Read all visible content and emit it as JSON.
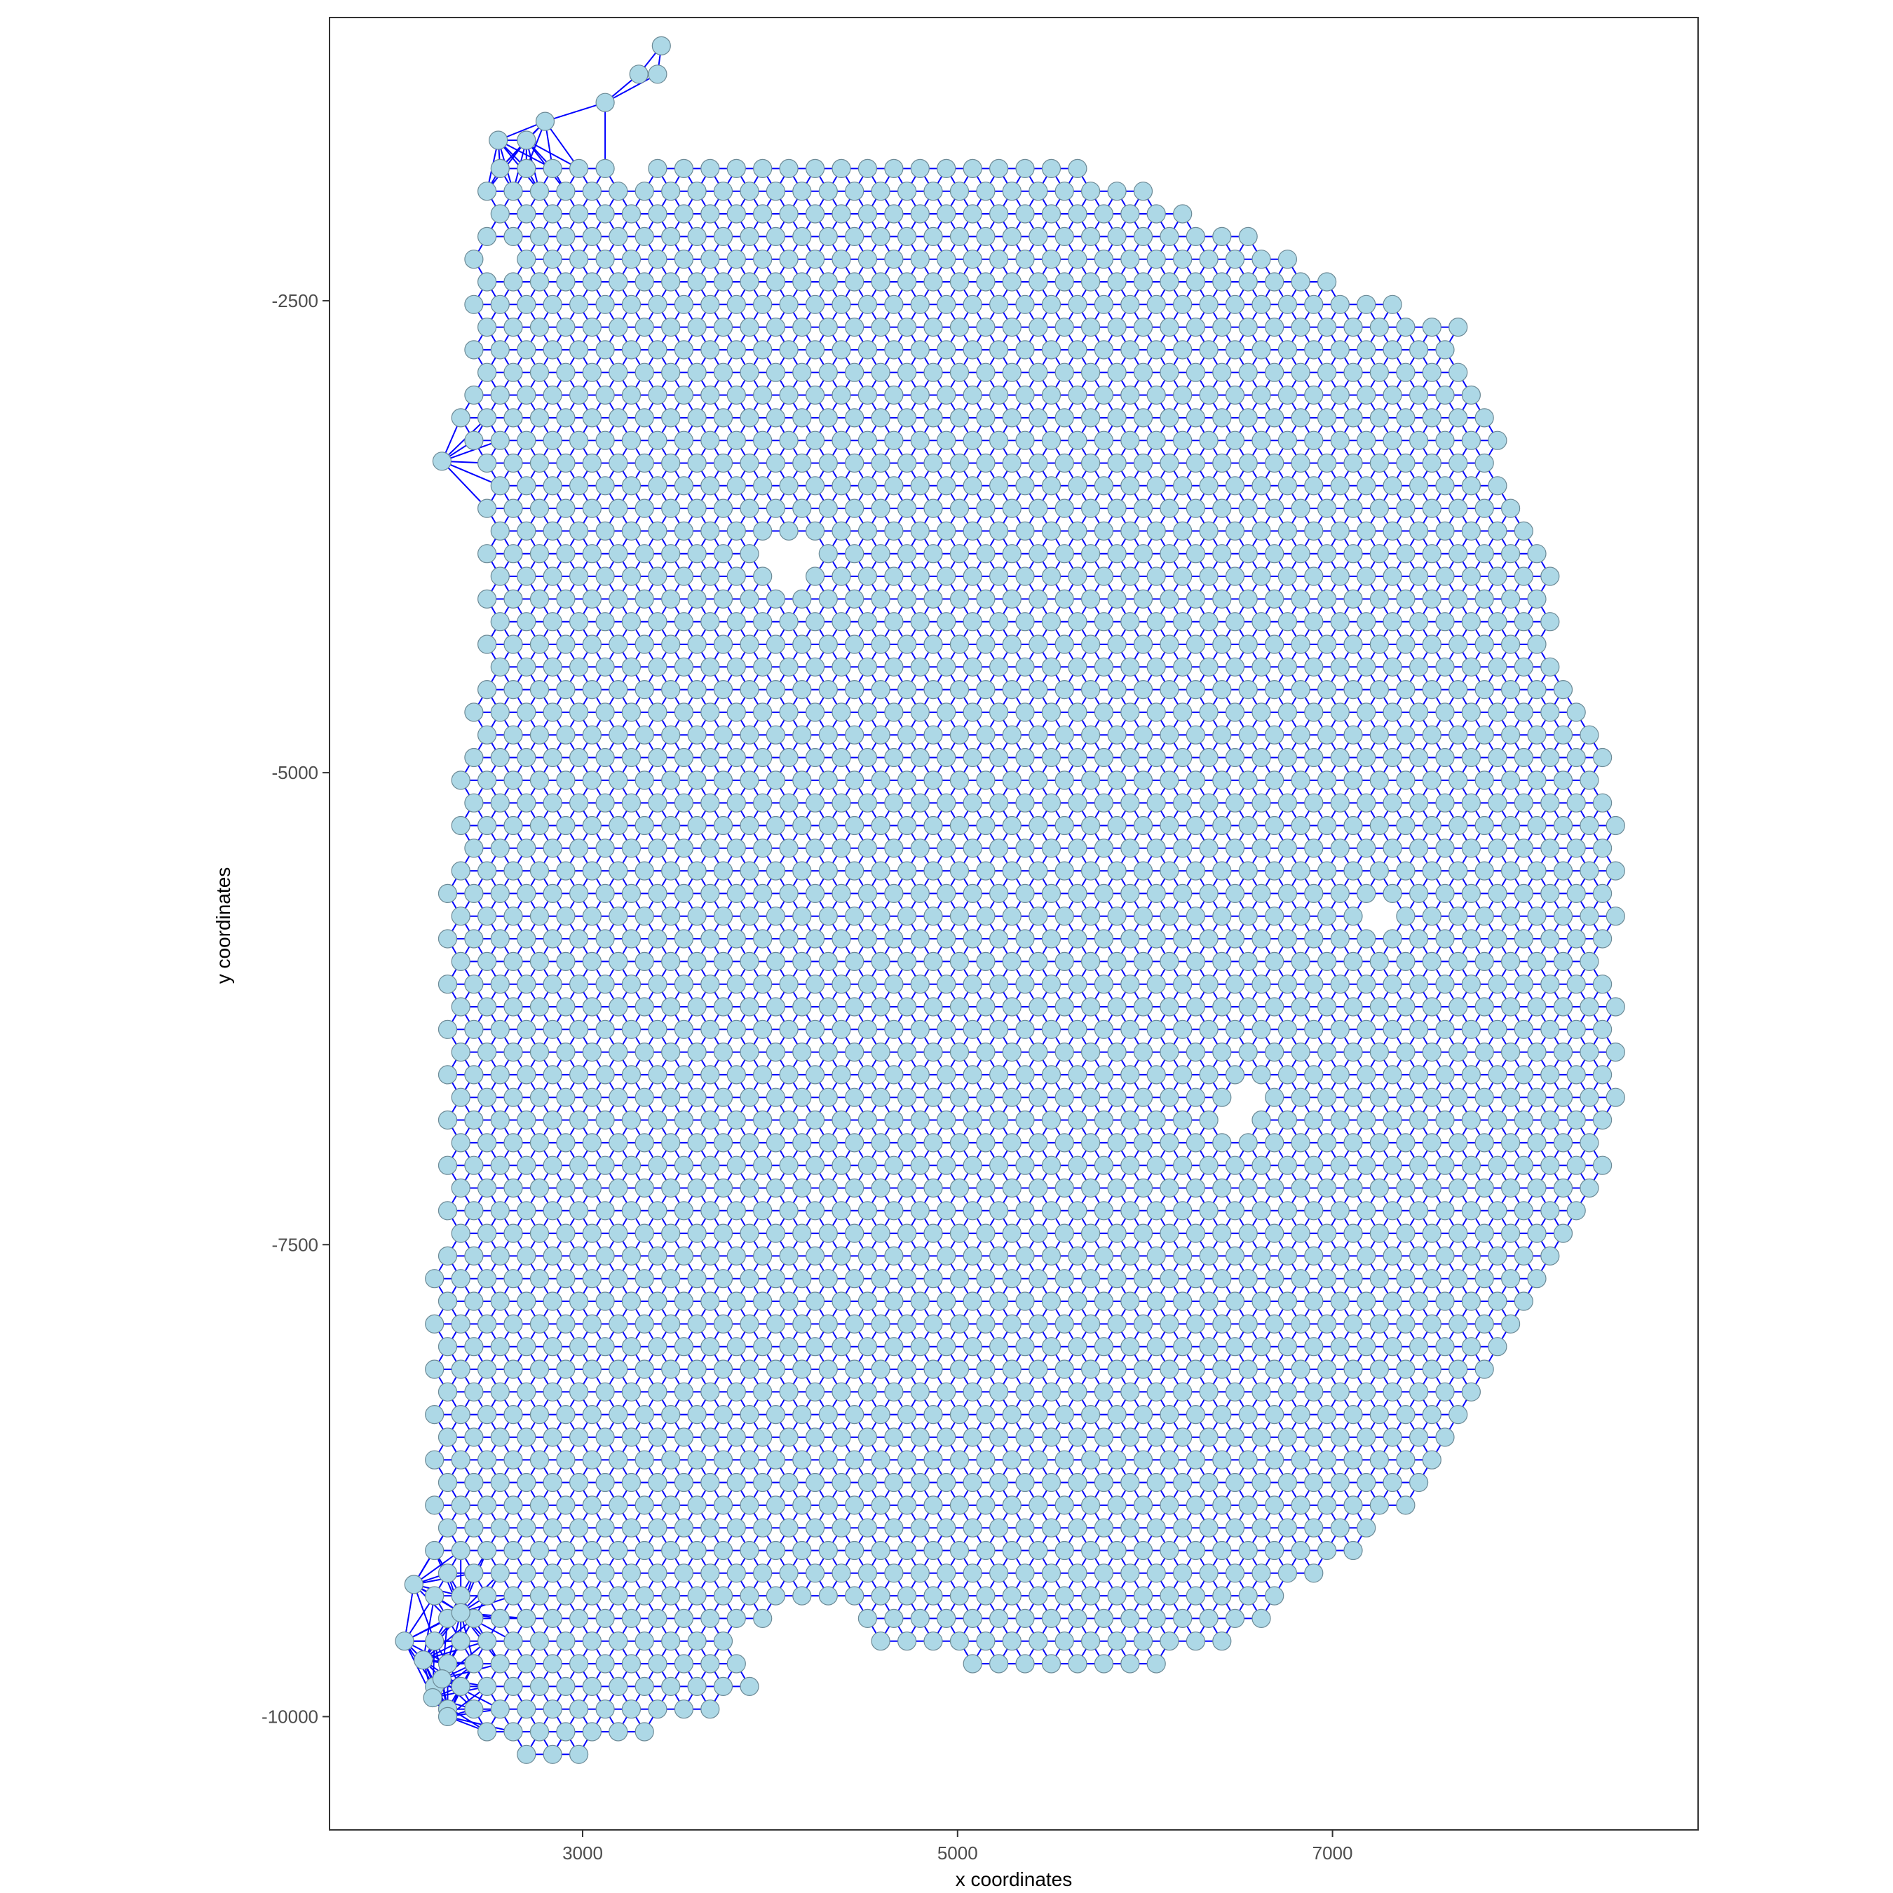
{
  "chart_data": {
    "type": "scatter",
    "title": "",
    "xlabel": "x coordinates",
    "ylabel": "y coordinates",
    "xlim": [
      1650,
      8950
    ],
    "ylim": [
      -10600,
      -1000
    ],
    "xticks": [
      3000,
      5000,
      7000
    ],
    "xtick_labels": [
      "3000",
      "5000",
      "7000"
    ],
    "yticks": [
      -2500,
      -5000,
      -7500,
      -10000
    ],
    "ytick_labels": [
      "-2500",
      "-5000",
      "-7500",
      "-10000"
    ],
    "grid": false,
    "legend": "none",
    "point_color": "#add8e6",
    "point_outline": "#6c8a96",
    "edge_color": "#0000ff",
    "lattice": {
      "description": "hexagonal grid of spots connected to nearest neighbours (Delaunay network)",
      "x_spacing": 140,
      "y_spacing": 120,
      "bounds": {
        "x_min": 2440,
        "x_max": 8600,
        "y_min": -9900,
        "y_max": -1800
      }
    },
    "outline_points": [
      {
        "x": 2430,
        "y": -1800
      },
      {
        "x": 2600,
        "y": -1750
      },
      {
        "x": 2900,
        "y": -1550
      },
      {
        "x": 3130,
        "y": -1450
      },
      {
        "x": 3420,
        "y": -1100
      },
      {
        "x": 3200,
        "y": -1850
      },
      {
        "x": 3800,
        "y": -1650
      },
      {
        "x": 4250,
        "y": -1400
      },
      {
        "x": 4520,
        "y": -1400
      },
      {
        "x": 5200,
        "y": -1550
      },
      {
        "x": 5750,
        "y": -1800
      },
      {
        "x": 6250,
        "y": -2000
      },
      {
        "x": 6800,
        "y": -2250
      },
      {
        "x": 7300,
        "y": -2500
      },
      {
        "x": 7700,
        "y": -2650
      },
      {
        "x": 7870,
        "y": -3200
      },
      {
        "x": 8150,
        "y": -3800
      },
      {
        "x": 8230,
        "y": -4400
      },
      {
        "x": 8450,
        "y": -4900
      },
      {
        "x": 8570,
        "y": -5200
      },
      {
        "x": 8500,
        "y": -6000
      },
      {
        "x": 8580,
        "y": -6700
      },
      {
        "x": 8440,
        "y": -7200
      },
      {
        "x": 8220,
        "y": -7700
      },
      {
        "x": 7870,
        "y": -8100
      },
      {
        "x": 7700,
        "y": -8600
      },
      {
        "x": 7300,
        "y": -9000
      },
      {
        "x": 6600,
        "y": -9500
      },
      {
        "x": 6400,
        "y": -9650
      },
      {
        "x": 5800,
        "y": -9800
      },
      {
        "x": 5200,
        "y": -9800
      },
      {
        "x": 4950,
        "y": -9700
      },
      {
        "x": 4550,
        "y": -9600
      },
      {
        "x": 4500,
        "y": -9500
      },
      {
        "x": 4350,
        "y": -9400
      },
      {
        "x": 4100,
        "y": -9450
      },
      {
        "x": 3800,
        "y": -9650
      },
      {
        "x": 3950,
        "y": -9900
      },
      {
        "x": 3500,
        "y": -10050
      },
      {
        "x": 3100,
        "y": -10200
      },
      {
        "x": 2700,
        "y": -10200
      },
      {
        "x": 2350,
        "y": -10050
      },
      {
        "x": 2200,
        "y": -9950
      },
      {
        "x": 2200,
        "y": -9300
      },
      {
        "x": 2200,
        "y": -8000
      },
      {
        "x": 2250,
        "y": -6100
      },
      {
        "x": 2300,
        "y": -5000
      },
      {
        "x": 2430,
        "y": -4500
      },
      {
        "x": 2420,
        "y": -3400
      },
      {
        "x": 2300,
        "y": -3200
      },
      {
        "x": 2400,
        "y": -2800
      }
    ],
    "holes": [
      {
        "x": 4100,
        "y": -3900
      },
      {
        "x": 7250,
        "y": -5800
      },
      {
        "x": 6500,
        "y": -6800
      },
      {
        "x": 2600,
        "y": -2300
      }
    ],
    "extra_points": [
      {
        "x": 3420,
        "y": -1150
      },
      {
        "x": 3400,
        "y": -1300
      },
      {
        "x": 3300,
        "y": -1300
      },
      {
        "x": 3120,
        "y": -1450
      },
      {
        "x": 2800,
        "y": -1550
      },
      {
        "x": 2700,
        "y": -1650
      },
      {
        "x": 2550,
        "y": -1650
      },
      {
        "x": 2250,
        "y": -3350
      },
      {
        "x": 2100,
        "y": -9300
      },
      {
        "x": 2050,
        "y": -9600
      },
      {
        "x": 2150,
        "y": -9700
      },
      {
        "x": 2250,
        "y": -9800
      },
      {
        "x": 2200,
        "y": -9900
      },
      {
        "x": 2350,
        "y": -9450
      },
      {
        "x": 2280,
        "y": -10000
      }
    ]
  }
}
